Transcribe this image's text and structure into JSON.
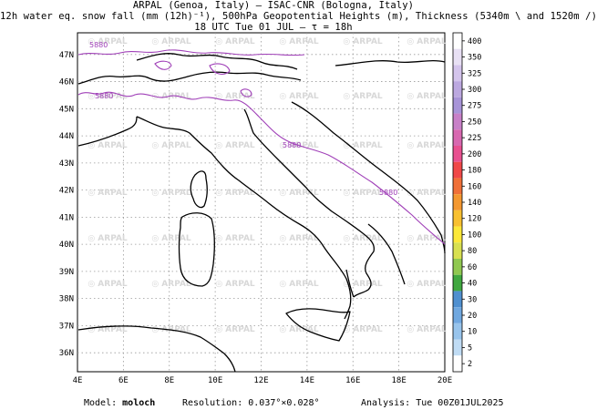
{
  "title": {
    "line1": "ARPAL (Genoa, Italy)  —  ISAC-CNR (Bologna, Italy)",
    "line2": "12h water eq. snow fall (mm (12h)⁻¹), 500hPa Geopotential Heights (m), Thickness (5340m \\ and 1520m /)",
    "line3": "18 UTC Tue 01 JUL  —  τ = 18h"
  },
  "map": {
    "lon_labels": [
      "4E",
      "6E",
      "8E",
      "10E",
      "12E",
      "14E",
      "16E",
      "18E",
      "20E"
    ],
    "lat_labels": [
      "47N",
      "46N",
      "45N",
      "44N",
      "43N",
      "42N",
      "41N",
      "40N",
      "39N",
      "38N",
      "37N",
      "36N"
    ],
    "contour_label": "5880",
    "contour_color": "#a040b8",
    "coast_color": "#000000",
    "grid_color": "#9a9a9a",
    "watermark": "ARPAL"
  },
  "colorbar": {
    "levels": [
      "400",
      "350",
      "325",
      "300",
      "275",
      "250",
      "225",
      "200",
      "180",
      "160",
      "140",
      "120",
      "100",
      "80",
      "60",
      "40",
      "30",
      "20",
      "10",
      "5",
      "2"
    ],
    "colors": [
      "#ffffff",
      "#e8e0f4",
      "#d4c4ec",
      "#bca8e0",
      "#a894d8",
      "#c880c8",
      "#d868b0",
      "#e85090",
      "#f04848",
      "#f07038",
      "#f49830",
      "#f8c030",
      "#fce838",
      "#d8e050",
      "#90c850",
      "#40a840",
      "#5090d0",
      "#70a8e0",
      "#98c4ec",
      "#c0dcf4",
      "#ffffff"
    ]
  },
  "footer": {
    "model_label": "Model:",
    "model_value": "moloch",
    "resolution_label": "Resolution:",
    "resolution_value": "0.037°×0.028°",
    "analysis_label": "Analysis:",
    "analysis_value": "Tue 00Z01JUL2025"
  }
}
